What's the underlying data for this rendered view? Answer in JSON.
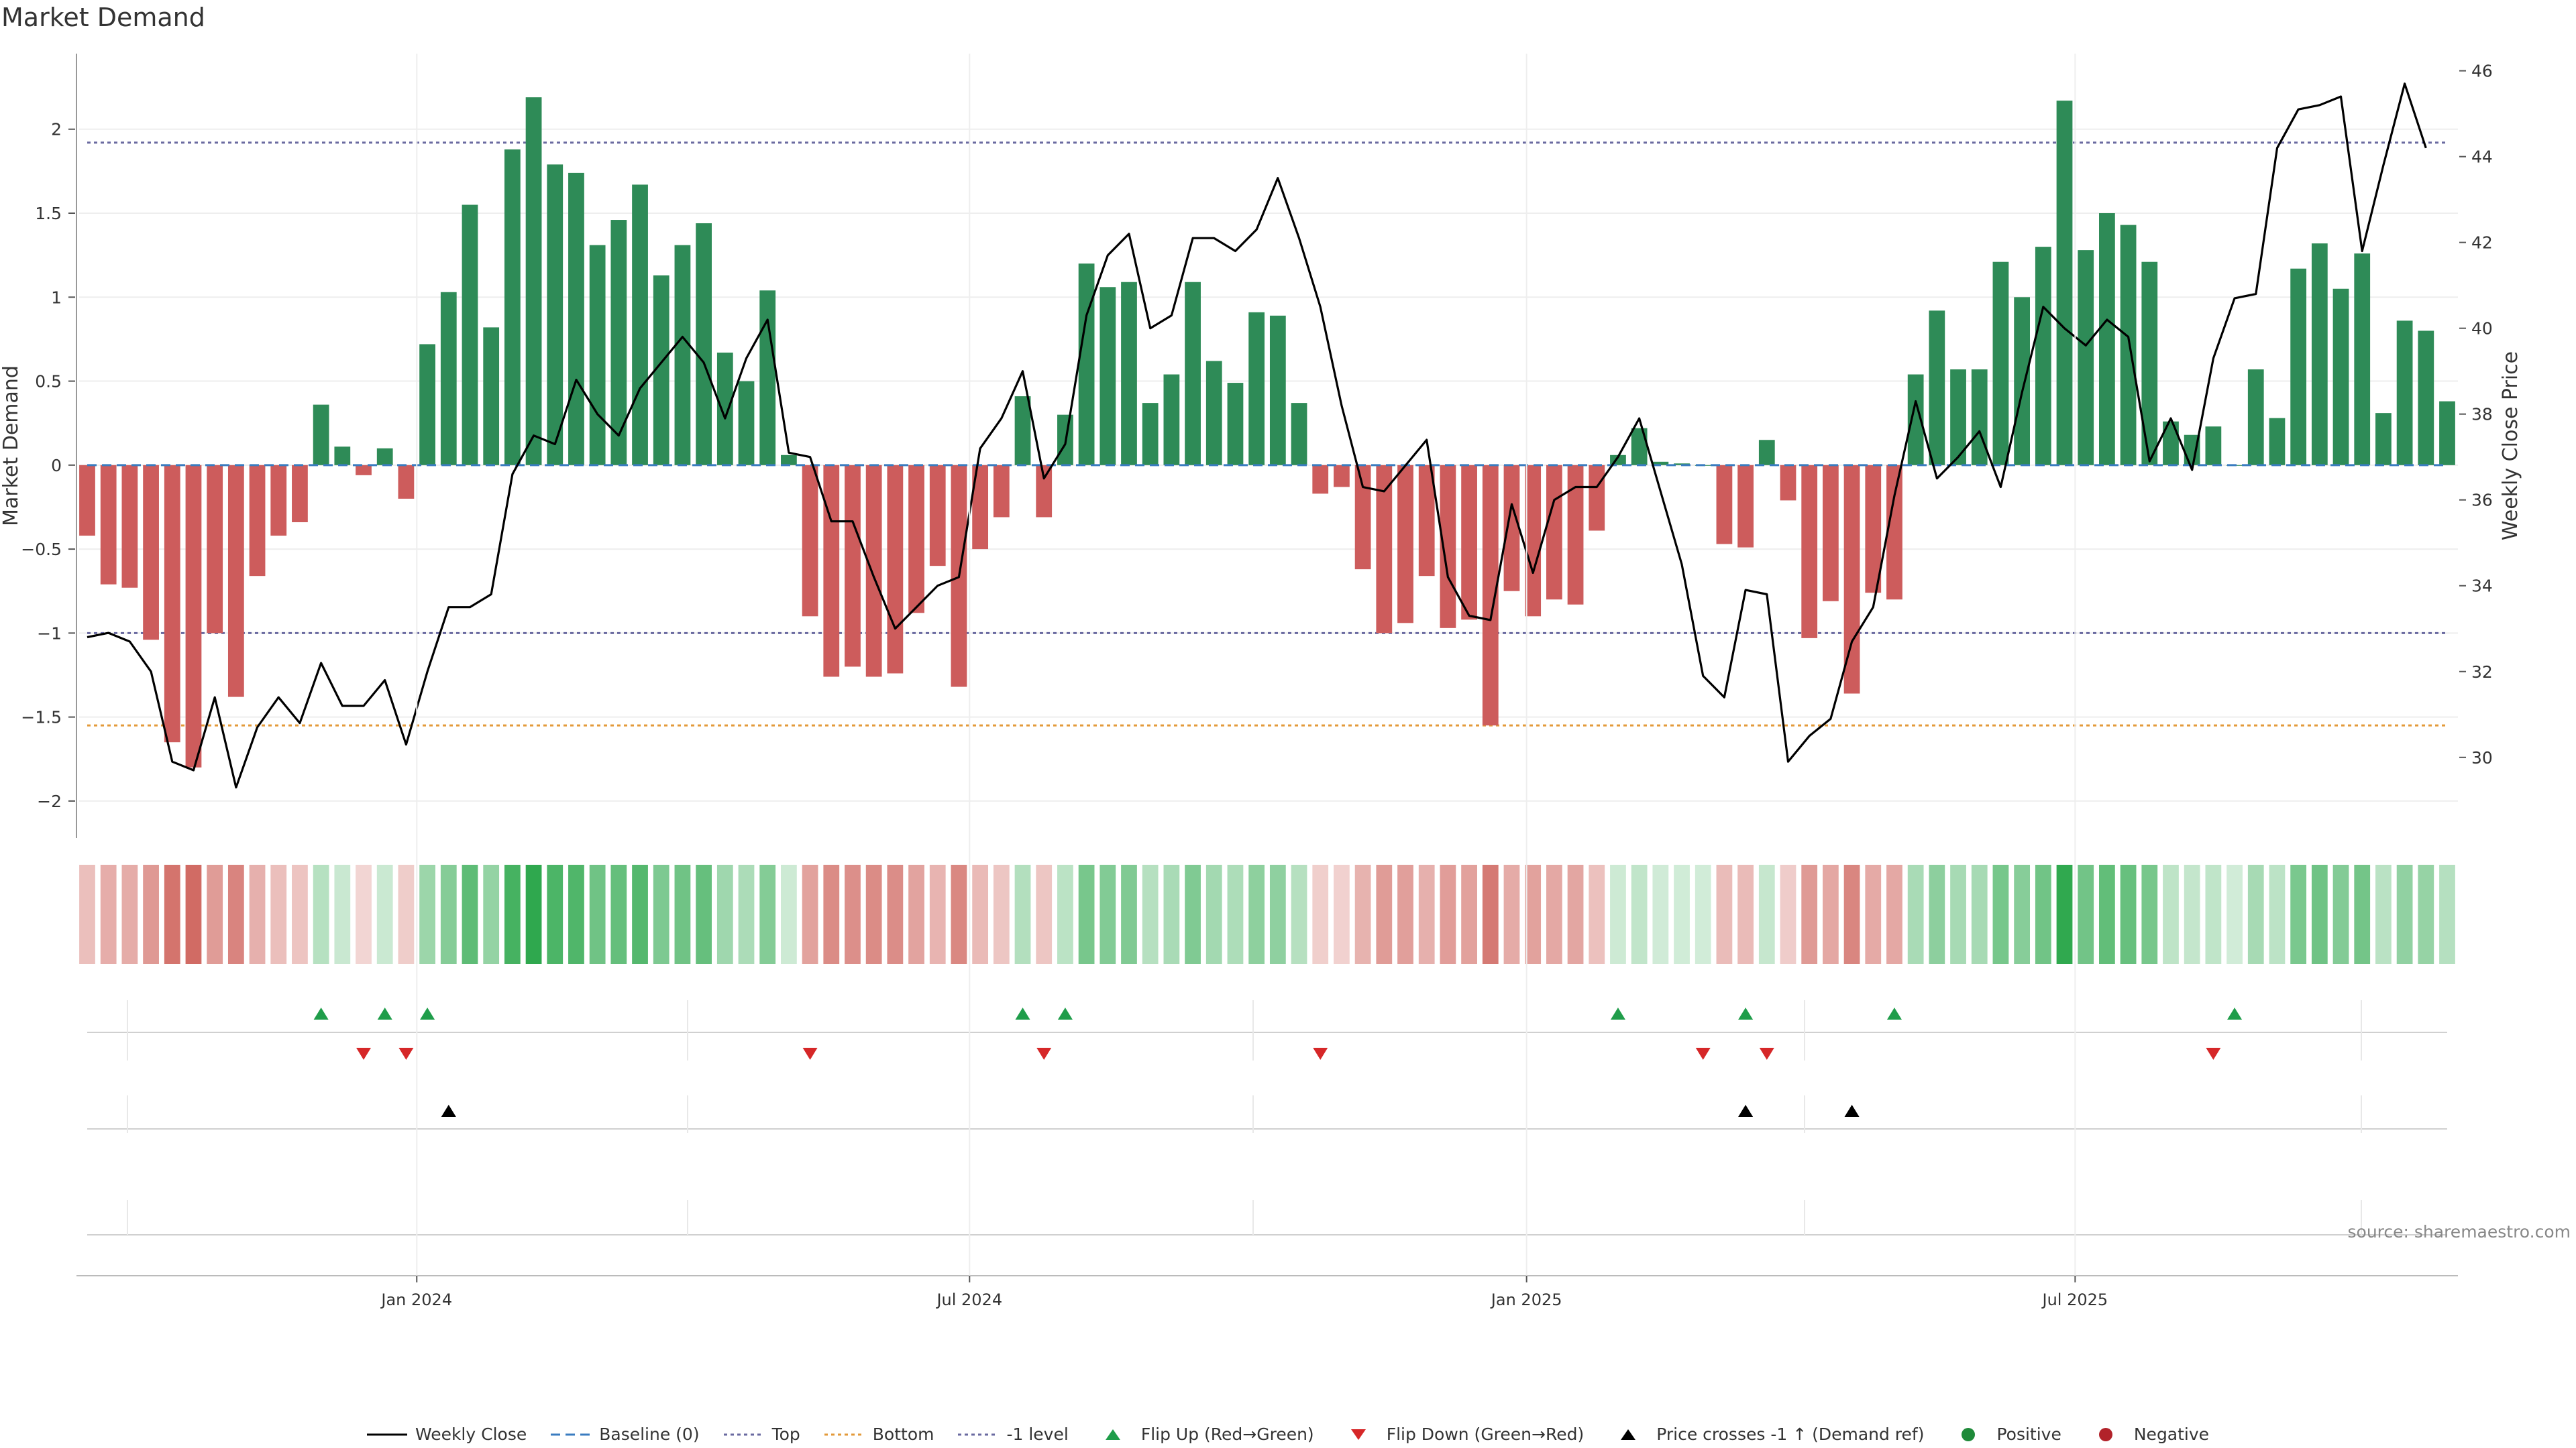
{
  "title": "Market Demand",
  "source": "source: sharemaestro.com",
  "colors": {
    "positive": "#2e8b57",
    "negative": "#cd5c5c",
    "top_line": "#6a6aa0",
    "bottom_line": "#e39a3a",
    "baseline": "#3a7cc0",
    "flip_up": "#1f9d4a",
    "flip_down": "#d62728",
    "price_cross": "#000000"
  },
  "chart_data": {
    "type": "bar",
    "title": "Market Demand",
    "ylabel": "Market Demand",
    "y2label": "Weekly Close Price",
    "ylim": [
      -2.2,
      2.45
    ],
    "y2lim": [
      28.2,
      46.4
    ],
    "yticks": [
      "2",
      "1.5",
      "1",
      "0.5",
      "0",
      "−0.5",
      "−1",
      "−1.5",
      "−2"
    ],
    "y2ticks": [
      "46",
      "44",
      "42",
      "40",
      "38",
      "36",
      "34",
      "32",
      "30"
    ],
    "reference_lines": {
      "top": 1.92,
      "bottom": -1.55,
      "minus_one": -1.0,
      "baseline": 0
    },
    "x_tick_labels": [
      "Jan 2024",
      "Jul 2024",
      "Jan 2025",
      "Jul 2025"
    ],
    "x_tick_index": [
      15.5,
      41.5,
      67.7,
      93.5
    ],
    "demand": [
      -0.42,
      -0.71,
      -0.73,
      -1.04,
      -1.65,
      -1.8,
      -1.0,
      -1.38,
      -0.66,
      -0.42,
      -0.34,
      0.36,
      0.11,
      -0.06,
      0.1,
      -0.2,
      0.72,
      1.03,
      1.55,
      0.82,
      1.88,
      2.19,
      1.79,
      1.74,
      1.31,
      1.46,
      1.67,
      1.13,
      1.31,
      1.44,
      0.67,
      0.5,
      1.04,
      0.06,
      -0.9,
      -1.26,
      -1.2,
      -1.26,
      -1.24,
      -0.88,
      -0.6,
      -1.32,
      -0.5,
      -0.31,
      0.41,
      -0.31,
      0.3,
      1.2,
      1.06,
      1.09,
      0.37,
      0.54,
      1.09,
      0.62,
      0.49,
      0.91,
      0.89,
      0.37,
      -0.17,
      -0.13,
      -0.62,
      -1.0,
      -0.94,
      -0.66,
      -0.97,
      -0.92,
      -1.55,
      -0.75,
      -0.9,
      -0.8,
      -0.83,
      -0.39,
      0.06,
      0.22,
      0.02,
      0.01,
      0.0,
      -0.47,
      -0.49,
      0.15,
      -0.21,
      -1.03,
      -0.81,
      -1.36,
      -0.76,
      -0.8,
      0.54,
      0.92,
      0.57,
      0.57,
      1.21,
      1.0,
      1.3,
      2.17,
      1.28,
      1.5,
      1.43,
      1.21,
      0.26,
      0.18,
      0.23,
      0.0,
      0.57,
      0.28,
      1.17,
      1.32,
      1.05,
      1.26,
      0.31,
      0.86,
      0.8,
      0.38
    ],
    "weekly_close": [
      32.8,
      32.9,
      32.7,
      32.0,
      29.9,
      29.7,
      31.4,
      29.3,
      30.7,
      31.4,
      30.8,
      32.2,
      31.2,
      31.2,
      31.8,
      30.3,
      32.0,
      33.5,
      33.5,
      33.8,
      36.6,
      37.5,
      37.3,
      38.8,
      38.0,
      37.5,
      38.6,
      39.2,
      39.8,
      39.2,
      37.9,
      39.3,
      40.2,
      37.1,
      37.0,
      35.5,
      35.5,
      34.2,
      33.0,
      33.5,
      34.0,
      34.2,
      37.2,
      37.9,
      39.0,
      36.5,
      37.3,
      40.3,
      41.7,
      42.2,
      40.0,
      40.3,
      42.1,
      42.1,
      41.8,
      42.3,
      43.5,
      42.1,
      40.5,
      38.2,
      36.3,
      36.2,
      36.8,
      37.4,
      34.2,
      33.3,
      33.2,
      35.9,
      34.3,
      36.0,
      36.3,
      36.3,
      37.0,
      37.9,
      36.2,
      34.5,
      31.9,
      31.4,
      33.9,
      33.8,
      29.9,
      30.5,
      30.9,
      32.7,
      33.5,
      36.1,
      38.3,
      36.5,
      37.0,
      37.6,
      36.3,
      38.5,
      40.5,
      40.0,
      39.6,
      40.2,
      39.8,
      36.9,
      37.9,
      36.7,
      39.3,
      40.7,
      40.8,
      44.2,
      45.1,
      45.2,
      45.4,
      41.8,
      43.8,
      45.7,
      44.2
    ],
    "flip_up_index": [
      11,
      14,
      16,
      44,
      46,
      72,
      78,
      85,
      101
    ],
    "flip_down_index": [
      13,
      15,
      34,
      45,
      58,
      76,
      79,
      100
    ],
    "price_cross_index": [
      17,
      78,
      83
    ]
  },
  "legend": [
    {
      "label": "Weekly Close",
      "marker": "line-solid"
    },
    {
      "label": "Baseline (0)",
      "marker": "line-dashed"
    },
    {
      "label": "Top",
      "marker": "line-dotted"
    },
    {
      "label": "Bottom",
      "marker": "line-dotted-orange"
    },
    {
      "label": "-1 level",
      "marker": "line-dotted"
    },
    {
      "label": "Flip Up (Red→Green)",
      "marker": "triangle-up-icon"
    },
    {
      "label": "Flip Down (Green→Red)",
      "marker": "triangle-down-icon"
    },
    {
      "label": "Price crosses -1 ↑ (Demand ref)",
      "marker": "triangle-up-black-icon"
    },
    {
      "label": "Positive",
      "marker": "dot-green-icon"
    },
    {
      "label": "Negative",
      "marker": "dot-red-icon"
    }
  ]
}
